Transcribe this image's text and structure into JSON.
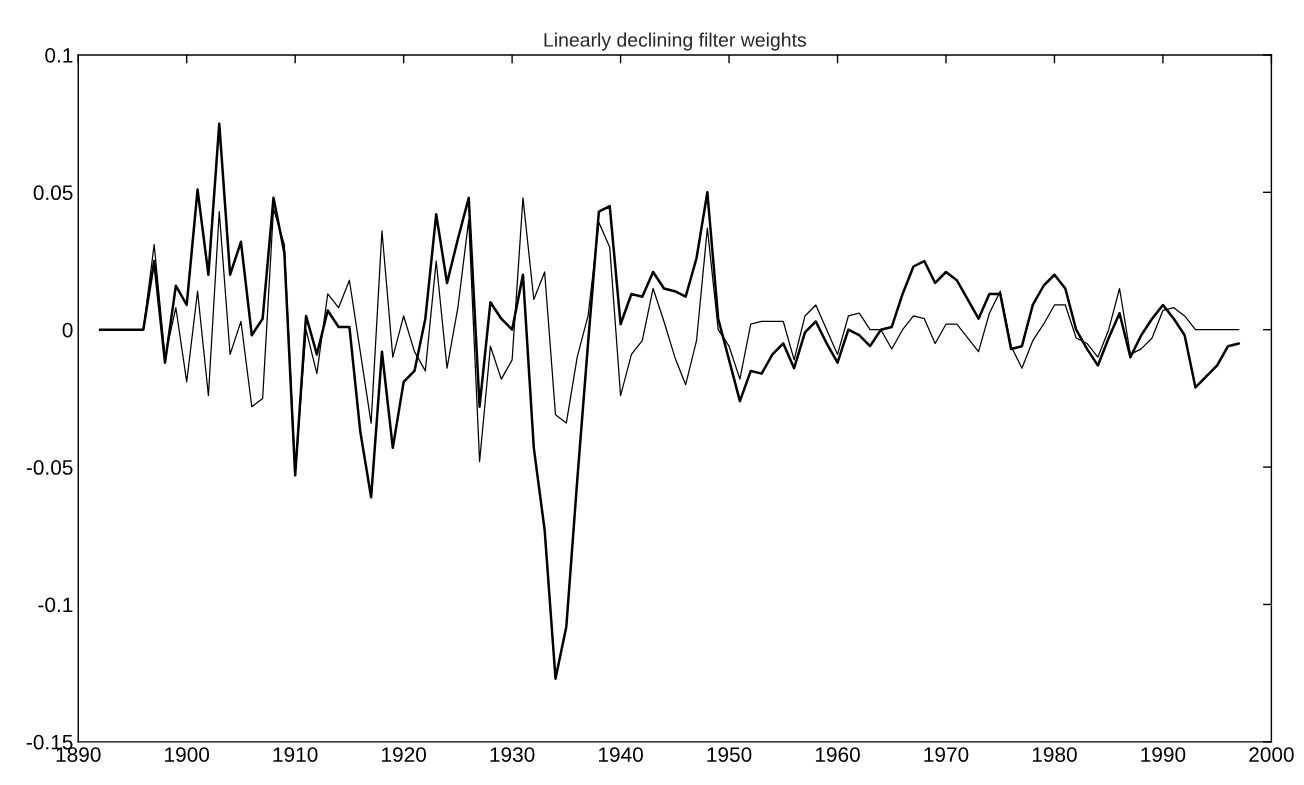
{
  "chart_data": {
    "type": "line",
    "title": "Linearly declining filter weights",
    "x": [
      1892,
      1893,
      1894,
      1895,
      1896,
      1897,
      1898,
      1899,
      1900,
      1901,
      1902,
      1903,
      1904,
      1905,
      1906,
      1907,
      1908,
      1909,
      1910,
      1911,
      1912,
      1913,
      1914,
      1915,
      1916,
      1917,
      1918,
      1919,
      1920,
      1921,
      1922,
      1923,
      1924,
      1925,
      1926,
      1927,
      1928,
      1929,
      1930,
      1931,
      1932,
      1933,
      1934,
      1935,
      1936,
      1937,
      1938,
      1939,
      1940,
      1941,
      1942,
      1943,
      1944,
      1945,
      1946,
      1947,
      1948,
      1949,
      1950,
      1951,
      1952,
      1953,
      1954,
      1955,
      1956,
      1957,
      1958,
      1959,
      1960,
      1961,
      1962,
      1963,
      1964,
      1965,
      1966,
      1967,
      1968,
      1969,
      1970,
      1971,
      1972,
      1973,
      1974,
      1975,
      1976,
      1977,
      1978,
      1979,
      1980,
      1981,
      1982,
      1983,
      1984,
      1985,
      1986,
      1987,
      1988,
      1989,
      1990,
      1991,
      1992,
      1993,
      1994,
      1995,
      1996,
      1997
    ],
    "series": [
      {
        "color": "#000000",
        "values": [
          0,
          0,
          0,
          0,
          0,
          0.025,
          -0.012,
          0.016,
          0.009,
          0.051,
          0.02,
          0.075,
          0.02,
          0.032,
          -0.002,
          0.004,
          0.048,
          0.028,
          -0.053,
          0.005,
          -0.009,
          0.007,
          0.001,
          0.001,
          -0.037,
          -0.061,
          -0.008,
          -0.043,
          -0.019,
          -0.015,
          0.004,
          0.042,
          0.017,
          0.033,
          0.048,
          -0.028,
          0.01,
          0.004,
          0.0,
          0.02,
          -0.043,
          -0.073,
          -0.127,
          -0.108,
          -0.055,
          -0.005,
          0.043,
          0.045,
          0.002,
          0.013,
          0.012,
          0.021,
          0.015,
          0.014,
          0.012,
          0.026,
          0.05,
          0.004,
          -0.011,
          -0.026,
          -0.015,
          -0.016,
          -0.009,
          -0.005,
          -0.014,
          -0.001,
          0.003,
          -0.005,
          -0.012,
          0.0,
          -0.002,
          -0.006,
          0.0,
          0.001,
          0.013,
          0.023,
          0.025,
          0.017,
          0.021,
          0.018,
          0.011,
          0.004,
          0.013,
          0.013,
          -0.007,
          -0.006,
          0.009,
          0.016,
          0.02,
          0.015,
          0.0,
          -0.007,
          -0.013,
          -0.003,
          0.006,
          -0.01,
          -0.002,
          0.004,
          0.009,
          0.004,
          -0.002,
          -0.021,
          -0.017,
          -0.013,
          -0.006,
          -0.005
        ]
      },
      {
        "color": "#000000",
        "values": [
          0,
          0,
          0,
          0,
          0,
          0.031,
          -0.01,
          0.008,
          -0.019,
          0.014,
          -0.024,
          0.043,
          -0.009,
          0.003,
          -0.028,
          -0.025,
          0.044,
          0.031,
          -0.052,
          0.0,
          -0.016,
          0.013,
          0.008,
          0.018,
          -0.008,
          -0.034,
          0.036,
          -0.01,
          0.005,
          -0.008,
          -0.015,
          0.025,
          -0.014,
          0.008,
          0.04,
          -0.048,
          -0.006,
          -0.018,
          -0.011,
          0.048,
          0.011,
          0.021,
          -0.031,
          -0.034,
          -0.01,
          0.005,
          0.039,
          0.03,
          -0.024,
          -0.009,
          -0.004,
          0.015,
          0.003,
          -0.01,
          -0.02,
          -0.004,
          0.037,
          0.0,
          -0.006,
          -0.018,
          0.002,
          0.003,
          0.003,
          0.003,
          -0.011,
          0.005,
          0.009,
          0.0,
          -0.009,
          0.005,
          0.006,
          0.0,
          0.0,
          -0.007,
          0.0,
          0.005,
          0.004,
          -0.005,
          0.002,
          0.002,
          -0.003,
          -0.008,
          0.006,
          0.014,
          -0.006,
          -0.014,
          -0.004,
          0.002,
          0.009,
          0.009,
          -0.003,
          -0.005,
          -0.01,
          0.0,
          0.015,
          -0.009,
          -0.007,
          -0.003,
          0.007,
          0.008,
          0.005,
          0.0,
          0.0,
          0.0,
          0.0,
          0.0
        ]
      }
    ],
    "xlim": [
      1890,
      2000
    ],
    "xticks": [
      1890,
      1900,
      1910,
      1920,
      1930,
      1940,
      1950,
      1960,
      1970,
      1980,
      1990,
      2000
    ],
    "ylim": [
      -0.15,
      0.1
    ],
    "yticks": [
      {
        "value": -0.15,
        "label": "-0.15"
      },
      {
        "value": -0.1,
        "label": "-0.1"
      },
      {
        "value": -0.05,
        "label": "-0.05"
      },
      {
        "value": 0,
        "label": "0"
      },
      {
        "value": 0.05,
        "label": "0.05"
      },
      {
        "value": 0.1,
        "label": "0.1"
      }
    ],
    "grid": false,
    "legend": false
  }
}
